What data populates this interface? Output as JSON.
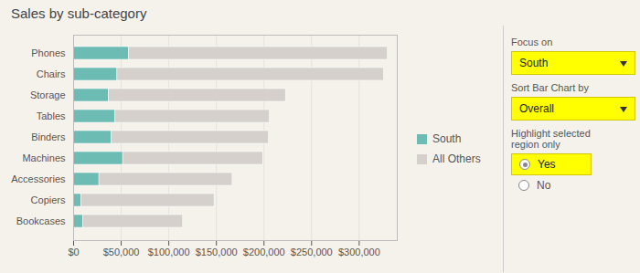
{
  "chart_data": {
    "type": "bar",
    "title": "Sales by sub-category",
    "orientation": "horizontal",
    "stacked": true,
    "categories": [
      "Bookcases",
      "Copiers",
      "Accessories",
      "Machines",
      "Binders",
      "Tables",
      "Storage",
      "Chairs",
      "Phones"
    ],
    "series": [
      {
        "name": "South",
        "color": "#6CBCB4",
        "values": [
          10000,
          8000,
          27000,
          52000,
          40000,
          44000,
          37000,
          46000,
          58000
        ]
      },
      {
        "name": "All Others",
        "color": "#D5D0CB",
        "values": [
          105000,
          140000,
          140000,
          147000,
          165000,
          162000,
          186000,
          280000,
          272000
        ]
      }
    ],
    "xlim": [
      0,
      340000
    ],
    "xticks": [
      {
        "value": 0,
        "label": "$0"
      },
      {
        "value": 50000,
        "label": "$50,000"
      },
      {
        "value": 100000,
        "label": "$100,000"
      },
      {
        "value": 150000,
        "label": "$150,000"
      },
      {
        "value": 200000,
        "label": "$200,000"
      },
      {
        "value": 250000,
        "label": "$250,000"
      },
      {
        "value": 300000,
        "label": "$300,000"
      }
    ],
    "grid": true,
    "legend": "right",
    "annotations": [
      "Focus on",
      "South",
      "Sort Bar Chart by",
      "Overall",
      "Highlight selected",
      "region only",
      "Yes",
      "No"
    ]
  }
}
